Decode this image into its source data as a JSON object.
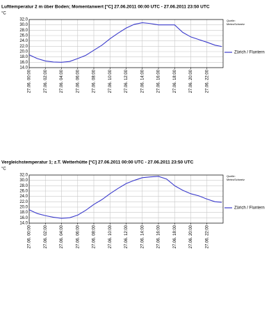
{
  "chart_data": [
    {
      "type": "line",
      "title": "Lufttemperatur 2 m über Boden; Momentanwert [°C]  27.06.2011 00:00 UTC - 27.06.2011 23:50 UTC",
      "y_label": "°C",
      "source": [
        "Quelle:",
        "MeteoSchweiz"
      ],
      "x": [
        0,
        1,
        2,
        3,
        4,
        5,
        6,
        7,
        8,
        9,
        10,
        11,
        12,
        13,
        14,
        15,
        16,
        17,
        18,
        19,
        20,
        21,
        22,
        23,
        23.83
      ],
      "series": [
        {
          "name": "Zürich / Fluntern",
          "color": "#3a3acc",
          "values": [
            18.8,
            17.4,
            16.5,
            16.1,
            16.0,
            16.3,
            17.4,
            18.6,
            20.5,
            22.4,
            24.8,
            26.9,
            28.8,
            30.2,
            30.8,
            30.5,
            30.0,
            30.0,
            30.0,
            27.2,
            25.5,
            24.5,
            23.5,
            22.4,
            21.9
          ]
        }
      ],
      "xlim": [
        0,
        24
      ],
      "xticks": [
        {
          "value": 0,
          "label": "27.06. 00:00"
        },
        {
          "value": 2,
          "label": "27.06. 02:00"
        },
        {
          "value": 4,
          "label": "27.06. 04:00"
        },
        {
          "value": 6,
          "label": "27.06. 06:00"
        },
        {
          "value": 8,
          "label": "27.06. 08:00"
        },
        {
          "value": 10,
          "label": "27.06. 10:00"
        },
        {
          "value": 12,
          "label": "27.06. 12:00"
        },
        {
          "value": 14,
          "label": "27.06. 14:00"
        },
        {
          "value": 16,
          "label": "27.06. 16:00"
        },
        {
          "value": 18,
          "label": "27.06. 18:00"
        },
        {
          "value": 20,
          "label": "27.06. 20:00"
        },
        {
          "value": 22,
          "label": "27.06. 22:00"
        }
      ],
      "ylim": [
        14,
        32
      ],
      "yticks": [
        {
          "value": 14,
          "label": "14.0"
        },
        {
          "value": 16,
          "label": "16.0"
        },
        {
          "value": 18,
          "label": "18.0"
        },
        {
          "value": 20,
          "label": "20.0"
        },
        {
          "value": 22,
          "label": "22.0"
        },
        {
          "value": 24,
          "label": "24.0"
        },
        {
          "value": 26,
          "label": "26.0"
        },
        {
          "value": 28,
          "label": "28.0"
        },
        {
          "value": 30,
          "label": "30.0"
        },
        {
          "value": 32,
          "label": "32.0"
        }
      ],
      "grid": true
    },
    {
      "type": "line",
      "title": "Vergleichstemperatur 1; z.T. Wetterhütte [°C]  27.06.2011 00:00 UTC - 27.06.2011 23:50 UTC",
      "y_label": "°C",
      "source": [
        "Quelle:",
        "MeteoSchweiz"
      ],
      "x": [
        0,
        1,
        2,
        3,
        4,
        5,
        6,
        7,
        8,
        9,
        10,
        11,
        12,
        13,
        14,
        15,
        16,
        17,
        18,
        19,
        20,
        21,
        22,
        23,
        23.83
      ],
      "series": [
        {
          "name": "Zürich / Fluntern",
          "color": "#3a3acc",
          "values": [
            19.0,
            17.6,
            16.8,
            16.2,
            15.8,
            16.0,
            17.0,
            18.8,
            21.0,
            22.8,
            25.0,
            27.0,
            28.8,
            30.0,
            31.0,
            31.3,
            31.5,
            30.5,
            28.0,
            26.3,
            25.0,
            24.2,
            23.0,
            22.0,
            21.8
          ]
        }
      ],
      "xlim": [
        0,
        24
      ],
      "xticks": [
        {
          "value": 0,
          "label": "27.06. 00:00"
        },
        {
          "value": 2,
          "label": "27.06. 02:00"
        },
        {
          "value": 4,
          "label": "27.06. 04:00"
        },
        {
          "value": 6,
          "label": "27.06. 06:00"
        },
        {
          "value": 8,
          "label": "27.06. 08:00"
        },
        {
          "value": 10,
          "label": "27.06. 10:00"
        },
        {
          "value": 12,
          "label": "27.06. 12:00"
        },
        {
          "value": 14,
          "label": "27.06. 14:00"
        },
        {
          "value": 16,
          "label": "27.06. 16:00"
        },
        {
          "value": 18,
          "label": "27.06. 18:00"
        },
        {
          "value": 20,
          "label": "27.06. 20:00"
        },
        {
          "value": 22,
          "label": "27.06. 22:00"
        }
      ],
      "ylim": [
        14,
        32
      ],
      "yticks": [
        {
          "value": 14,
          "label": "14.0"
        },
        {
          "value": 16,
          "label": "16.0"
        },
        {
          "value": 18,
          "label": "18.0"
        },
        {
          "value": 20,
          "label": "20.0"
        },
        {
          "value": 22,
          "label": "22.0"
        },
        {
          "value": 24,
          "label": "24.0"
        },
        {
          "value": 26,
          "label": "26.0"
        },
        {
          "value": 28,
          "label": "28.0"
        },
        {
          "value": 30,
          "label": "30.0"
        },
        {
          "value": 32,
          "label": "32.0"
        }
      ],
      "grid": true
    }
  ]
}
